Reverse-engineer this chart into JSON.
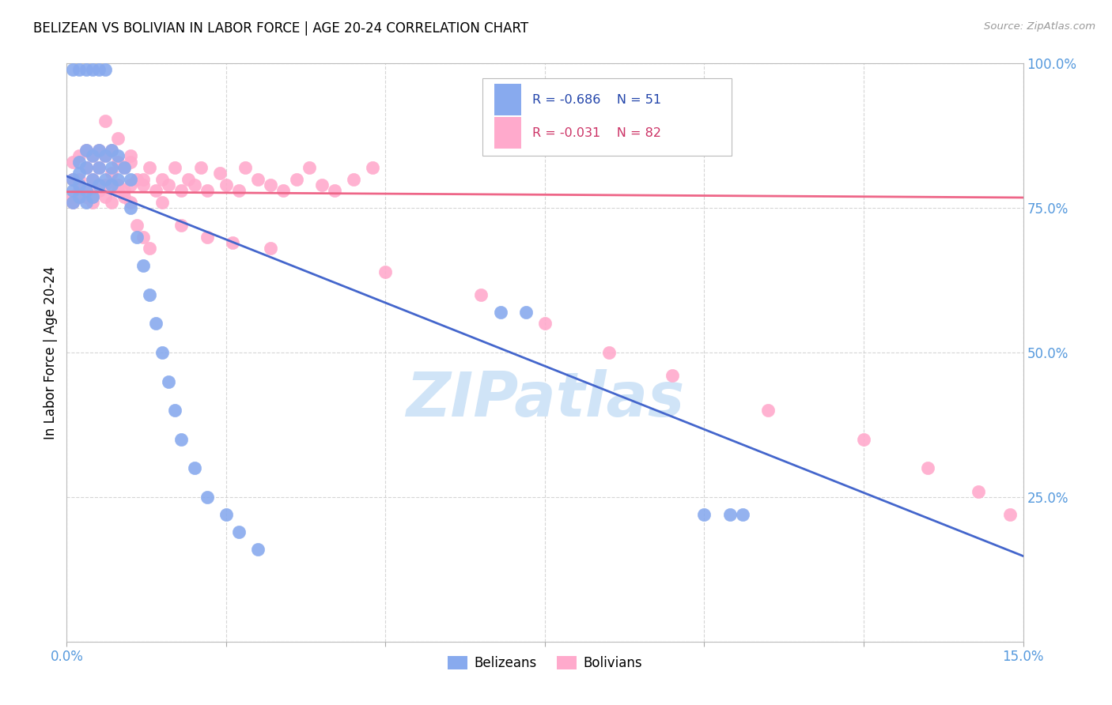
{
  "title": "BELIZEAN VS BOLIVIAN IN LABOR FORCE | AGE 20-24 CORRELATION CHART",
  "source": "Source: ZipAtlas.com",
  "ylabel": "In Labor Force | Age 20-24",
  "xlim": [
    0.0,
    0.15
  ],
  "ylim": [
    0.0,
    1.0
  ],
  "belizean_color": "#88AAEE",
  "bolivian_color": "#FFAACC",
  "trend_blue": "#4466CC",
  "trend_pink": "#EE6688",
  "watermark": "ZIPatlas",
  "watermark_color": "#d0e4f7",
  "legend_R_blue": "-0.686",
  "legend_N_blue": "51",
  "legend_R_pink": "-0.031",
  "legend_N_pink": "82",
  "blue_line_y0": 0.805,
  "blue_line_y1": 0.148,
  "pink_line_y0": 0.778,
  "pink_line_y1": 0.768,
  "belize_x": [
    0.001,
    0.001,
    0.001,
    0.002,
    0.002,
    0.002,
    0.002,
    0.003,
    0.003,
    0.003,
    0.003,
    0.004,
    0.004,
    0.004,
    0.005,
    0.005,
    0.005,
    0.006,
    0.006,
    0.007,
    0.007,
    0.007,
    0.008,
    0.008,
    0.009,
    0.01,
    0.01,
    0.011,
    0.012,
    0.013,
    0.014,
    0.015,
    0.016,
    0.017,
    0.018,
    0.02,
    0.022,
    0.025,
    0.027,
    0.03,
    0.001,
    0.002,
    0.003,
    0.004,
    0.005,
    0.006,
    0.068,
    0.072,
    0.1,
    0.104,
    0.106
  ],
  "belize_y": [
    0.76,
    0.78,
    0.8,
    0.81,
    0.83,
    0.79,
    0.77,
    0.85,
    0.82,
    0.78,
    0.76,
    0.84,
    0.8,
    0.77,
    0.85,
    0.82,
    0.79,
    0.84,
    0.8,
    0.85,
    0.82,
    0.79,
    0.84,
    0.8,
    0.82,
    0.8,
    0.75,
    0.7,
    0.65,
    0.6,
    0.55,
    0.5,
    0.45,
    0.4,
    0.35,
    0.3,
    0.25,
    0.22,
    0.19,
    0.16,
    0.99,
    0.99,
    0.99,
    0.99,
    0.99,
    0.99,
    0.57,
    0.57,
    0.22,
    0.22,
    0.22
  ],
  "bolivia_x": [
    0.001,
    0.001,
    0.001,
    0.002,
    0.002,
    0.002,
    0.003,
    0.003,
    0.003,
    0.004,
    0.004,
    0.004,
    0.005,
    0.005,
    0.005,
    0.006,
    0.006,
    0.007,
    0.007,
    0.008,
    0.008,
    0.009,
    0.009,
    0.01,
    0.01,
    0.011,
    0.012,
    0.013,
    0.014,
    0.015,
    0.016,
    0.017,
    0.018,
    0.019,
    0.02,
    0.021,
    0.022,
    0.024,
    0.025,
    0.027,
    0.028,
    0.03,
    0.032,
    0.034,
    0.036,
    0.038,
    0.04,
    0.042,
    0.045,
    0.048,
    0.001,
    0.002,
    0.003,
    0.004,
    0.005,
    0.006,
    0.007,
    0.008,
    0.009,
    0.01,
    0.011,
    0.012,
    0.013,
    0.006,
    0.008,
    0.01,
    0.012,
    0.015,
    0.018,
    0.022,
    0.026,
    0.032,
    0.05,
    0.065,
    0.075,
    0.085,
    0.095,
    0.11,
    0.125,
    0.135,
    0.143,
    0.148
  ],
  "bolivia_y": [
    0.8,
    0.83,
    0.77,
    0.84,
    0.8,
    0.77,
    0.85,
    0.82,
    0.78,
    0.84,
    0.8,
    0.77,
    0.85,
    0.82,
    0.78,
    0.84,
    0.79,
    0.85,
    0.81,
    0.83,
    0.79,
    0.82,
    0.78,
    0.83,
    0.79,
    0.8,
    0.79,
    0.82,
    0.78,
    0.8,
    0.79,
    0.82,
    0.78,
    0.8,
    0.79,
    0.82,
    0.78,
    0.81,
    0.79,
    0.78,
    0.82,
    0.8,
    0.79,
    0.78,
    0.8,
    0.82,
    0.79,
    0.78,
    0.8,
    0.82,
    0.76,
    0.78,
    0.77,
    0.76,
    0.78,
    0.77,
    0.76,
    0.78,
    0.77,
    0.76,
    0.72,
    0.7,
    0.68,
    0.9,
    0.87,
    0.84,
    0.8,
    0.76,
    0.72,
    0.7,
    0.69,
    0.68,
    0.64,
    0.6,
    0.55,
    0.5,
    0.46,
    0.4,
    0.35,
    0.3,
    0.26,
    0.22
  ]
}
